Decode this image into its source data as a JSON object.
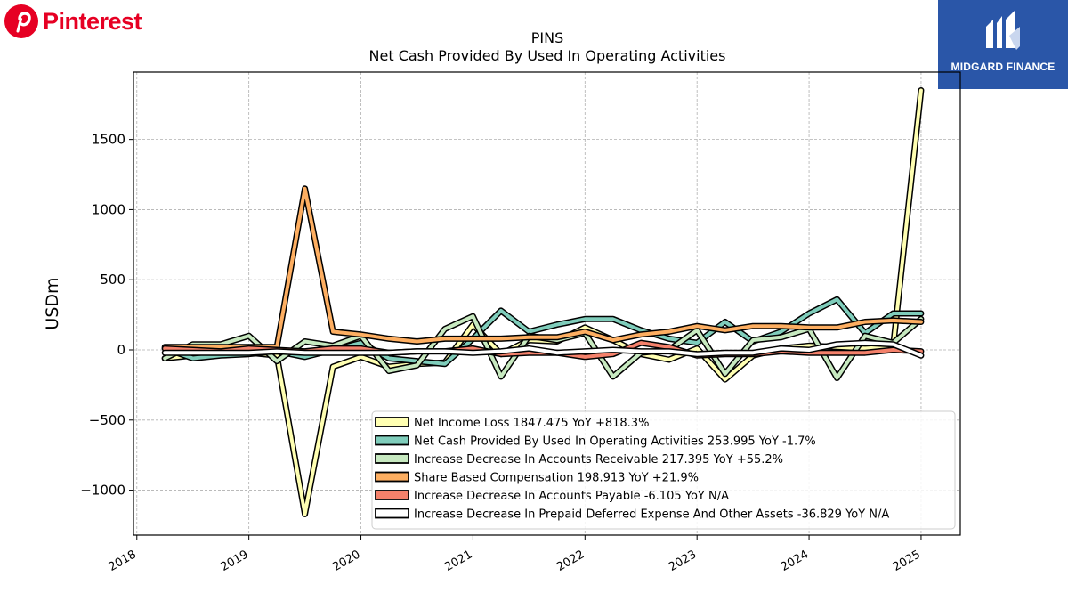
{
  "brand": {
    "name": "Pinterest",
    "logo_icon": "pinterest-p-icon",
    "color": "#e60023"
  },
  "badge": {
    "name": "MIDGARD FINANCE",
    "logo_icon": "midgard-m-icon",
    "color": "#2a56a8"
  },
  "chart_data": {
    "type": "line",
    "title": "PINS",
    "subtitle": "Net Cash Provided By Used In Operating Activities",
    "ylabel": "USDm",
    "xlabel": "",
    "ylim": [
      -1320,
      1980
    ],
    "xlim": [
      2017.97,
      2025.35
    ],
    "yticks": [
      -1000,
      -500,
      0,
      500,
      1000,
      1500
    ],
    "ytick_labels": [
      "−1000",
      "−500",
      "0",
      "500",
      "1000",
      "1500"
    ],
    "xticks": [
      2018,
      2019,
      2020,
      2021,
      2022,
      2023,
      2024,
      2025
    ],
    "xtick_labels": [
      "2018",
      "2019",
      "2020",
      "2021",
      "2022",
      "2023",
      "2024",
      "2025"
    ],
    "grid": true,
    "legend_position": "bottom-right",
    "x": [
      2018.25,
      2018.5,
      2018.75,
      2019.0,
      2019.25,
      2019.5,
      2019.75,
      2020.0,
      2020.25,
      2020.5,
      2020.75,
      2021.0,
      2021.25,
      2021.5,
      2021.75,
      2022.0,
      2022.25,
      2022.5,
      2022.75,
      2023.0,
      2023.25,
      2023.5,
      2023.75,
      2024.0,
      2024.25,
      2024.5,
      2024.75,
      2025.0
    ],
    "series": [
      {
        "name": "Net Income Loss",
        "legend_label": "Net Income Loss  1847.475 YoY +818.3%",
        "color": "#ffffb2",
        "values": [
          -60,
          -40,
          -30,
          -20,
          -40,
          -1170,
          -120,
          -50,
          -120,
          -100,
          -90,
          180,
          -30,
          70,
          60,
          160,
          70,
          -30,
          -70,
          10,
          -210,
          -40,
          10,
          30,
          20,
          10,
          20,
          1850
        ]
      },
      {
        "name": "Net Cash Provided By Used In Operating Activities",
        "legend_label": "Net Cash Provided By Used In Operating Activities  253.995 YoY -1.7%",
        "color": "#7fcdbb",
        "values": [
          10,
          -60,
          -40,
          -30,
          -10,
          -50,
          0,
          50,
          -60,
          -80,
          -100,
          80,
          280,
          130,
          180,
          220,
          220,
          140,
          80,
          50,
          200,
          60,
          130,
          260,
          360,
          120,
          260,
          260
        ]
      },
      {
        "name": "Increase Decrease In Accounts Receivable",
        "legend_label": "Increase Decrease In Accounts Receivable  217.395 YoY +55.2%",
        "color": "#c7e9c0",
        "values": [
          -60,
          40,
          40,
          100,
          -80,
          60,
          30,
          100,
          -150,
          -110,
          150,
          240,
          -190,
          100,
          70,
          120,
          -190,
          -20,
          0,
          140,
          -170,
          70,
          90,
          150,
          -200,
          100,
          50,
          220
        ]
      },
      {
        "name": "Share Based Compensation",
        "legend_label": "Share Based Compensation  198.913 YoY +21.9%",
        "color": "#fdae61",
        "values": [
          20,
          20,
          20,
          20,
          20,
          1150,
          130,
          110,
          80,
          60,
          80,
          80,
          80,
          90,
          90,
          130,
          70,
          110,
          130,
          170,
          140,
          170,
          170,
          160,
          160,
          200,
          210,
          200
        ]
      },
      {
        "name": "Increase Decrease In Accounts Payable",
        "legend_label": "Increase Decrease In Accounts Payable  -6.105 YoY N/A",
        "color": "#f4816b",
        "values": [
          10,
          0,
          -10,
          10,
          0,
          -10,
          10,
          10,
          -20,
          -10,
          -10,
          10,
          -30,
          -20,
          -20,
          -50,
          -30,
          50,
          20,
          -40,
          -30,
          -30,
          -10,
          -20,
          -20,
          -20,
          0,
          -10
        ]
      },
      {
        "name": "Increase Decrease In Prepaid Deferred Expense And Other Assets",
        "legend_label": "Increase Decrease In Prepaid Deferred Expense And Other Assets  -36.829 YoY N/A",
        "color": "#ffffff",
        "values": [
          -20,
          -20,
          -20,
          -20,
          -10,
          -20,
          -20,
          -20,
          -20,
          -10,
          -10,
          -20,
          -10,
          10,
          -20,
          -10,
          0,
          -10,
          -10,
          -30,
          -20,
          -20,
          10,
          0,
          40,
          50,
          40,
          -40
        ]
      }
    ]
  }
}
